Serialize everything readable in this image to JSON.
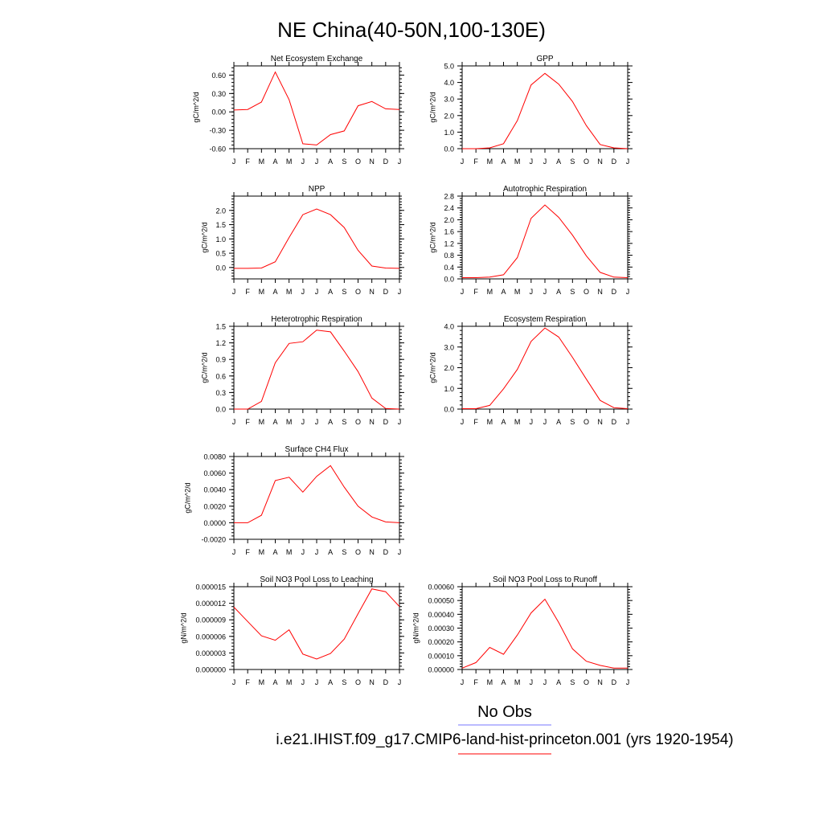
{
  "figure": {
    "title": "NE China(40-50N,100-130E)",
    "legend": {
      "obs_label": "No Obs",
      "obs_color": "#7777ff",
      "model_label": "i.e21.IHIST.f09_g17.CMIP6-land-hist-princeton.001 (yrs 1920-1954)",
      "model_color": "#ff0000"
    }
  },
  "chart_data": [
    {
      "type": "line",
      "title": "Net Ecosystem Exchange",
      "ylabel": "gC/m^2/d",
      "xlabel": "",
      "categories": [
        "J",
        "F",
        "M",
        "A",
        "M",
        "J",
        "J",
        "A",
        "S",
        "O",
        "N",
        "D",
        "J"
      ],
      "ylim": [
        -0.6,
        0.75
      ],
      "yticks": [
        -0.6,
        -0.3,
        0.0,
        0.3,
        0.6
      ],
      "yticklabels": [
        "-0.60",
        "-0.30",
        "0.00",
        "0.30",
        "0.60"
      ],
      "grid": false,
      "series": [
        {
          "color": "#ff0000",
          "values": [
            0.03,
            0.04,
            0.16,
            0.65,
            0.2,
            -0.52,
            -0.54,
            -0.37,
            -0.31,
            0.1,
            0.17,
            0.05,
            0.04
          ]
        }
      ]
    },
    {
      "type": "line",
      "title": "GPP",
      "ylabel": "gC/m^2/d",
      "xlabel": "",
      "categories": [
        "J",
        "F",
        "M",
        "A",
        "M",
        "J",
        "J",
        "A",
        "S",
        "O",
        "N",
        "D",
        "J"
      ],
      "ylim": [
        0,
        5
      ],
      "yticks": [
        0,
        1,
        2,
        3,
        4,
        5
      ],
      "yticklabels": [
        "0.0",
        "1.0",
        "2.0",
        "3.0",
        "4.0",
        "5.0"
      ],
      "grid": false,
      "series": [
        {
          "color": "#ff0000",
          "values": [
            0.0,
            0.0,
            0.05,
            0.3,
            1.7,
            3.85,
            4.55,
            3.9,
            2.85,
            1.4,
            0.25,
            0.05,
            0.0
          ]
        }
      ]
    },
    {
      "type": "line",
      "title": "NPP",
      "ylabel": "gC/m^2/d",
      "xlabel": "",
      "categories": [
        "J",
        "F",
        "M",
        "A",
        "M",
        "J",
        "J",
        "A",
        "S",
        "O",
        "N",
        "D",
        "J"
      ],
      "ylim": [
        -0.4,
        2.5
      ],
      "yticks": [
        0,
        0.5,
        1.0,
        1.5,
        2.0
      ],
      "yticklabels": [
        "0.0",
        "0.5",
        "1.0",
        "1.5",
        "2.0"
      ],
      "grid": false,
      "series": [
        {
          "color": "#ff0000",
          "values": [
            -0.03,
            -0.03,
            -0.02,
            0.2,
            1.05,
            1.85,
            2.05,
            1.85,
            1.4,
            0.6,
            0.05,
            -0.02,
            -0.03
          ]
        }
      ]
    },
    {
      "type": "line",
      "title": "Autotrophic Respiration",
      "ylabel": "gC/m^2/d",
      "xlabel": "",
      "categories": [
        "J",
        "F",
        "M",
        "A",
        "M",
        "J",
        "J",
        "A",
        "S",
        "O",
        "N",
        "D",
        "J"
      ],
      "ylim": [
        0,
        2.8
      ],
      "yticks": [
        0,
        0.4,
        0.8,
        1.2,
        1.6,
        2.0,
        2.4,
        2.8
      ],
      "yticklabels": [
        "0.0",
        "0.4",
        "0.8",
        "1.2",
        "1.6",
        "2.0",
        "2.4",
        "2.8"
      ],
      "grid": false,
      "series": [
        {
          "color": "#ff0000",
          "values": [
            0.04,
            0.04,
            0.06,
            0.14,
            0.72,
            2.05,
            2.5,
            2.08,
            1.48,
            0.78,
            0.22,
            0.06,
            0.04
          ]
        }
      ]
    },
    {
      "type": "line",
      "title": "Heterotrophic Respiration",
      "ylabel": "gC/m^2/d",
      "xlabel": "",
      "categories": [
        "J",
        "F",
        "M",
        "A",
        "M",
        "J",
        "J",
        "A",
        "S",
        "O",
        "N",
        "D",
        "J"
      ],
      "ylim": [
        0,
        1.5
      ],
      "yticks": [
        0,
        0.3,
        0.6,
        0.9,
        1.2,
        1.5
      ],
      "yticklabels": [
        "0.0",
        "0.3",
        "0.6",
        "0.9",
        "1.2",
        "1.5"
      ],
      "grid": false,
      "series": [
        {
          "color": "#ff0000",
          "values": [
            0.0,
            0.0,
            0.14,
            0.84,
            1.19,
            1.22,
            1.43,
            1.4,
            1.05,
            0.68,
            0.2,
            0.01,
            0.0
          ]
        }
      ]
    },
    {
      "type": "line",
      "title": "Ecosystem Respiration",
      "ylabel": "gC/m^2/d",
      "xlabel": "",
      "categories": [
        "J",
        "F",
        "M",
        "A",
        "M",
        "J",
        "J",
        "A",
        "S",
        "O",
        "N",
        "D",
        "J"
      ],
      "ylim": [
        0,
        4
      ],
      "yticks": [
        0,
        1,
        2,
        3,
        4
      ],
      "yticklabels": [
        "0.0",
        "1.0",
        "2.0",
        "3.0",
        "4.0"
      ],
      "grid": false,
      "series": [
        {
          "color": "#ff0000",
          "values": [
            0.02,
            0.02,
            0.18,
            0.98,
            1.92,
            3.27,
            3.92,
            3.48,
            2.5,
            1.45,
            0.42,
            0.07,
            0.02
          ]
        }
      ]
    },
    {
      "type": "line",
      "title": "Surface CH4 Flux",
      "ylabel": "gC/m^2/d",
      "xlabel": "",
      "categories": [
        "J",
        "F",
        "M",
        "A",
        "M",
        "J",
        "J",
        "A",
        "S",
        "O",
        "N",
        "D",
        "J"
      ],
      "ylim": [
        -0.002,
        0.008
      ],
      "yticks": [
        -0.002,
        0,
        0.002,
        0.004,
        0.006,
        0.008
      ],
      "yticklabels": [
        "-0.0020",
        "0.0000",
        "0.0020",
        "0.0040",
        "0.0060",
        "0.0080"
      ],
      "grid": false,
      "series": [
        {
          "color": "#ff0000",
          "values": [
            0.0,
            0.0,
            0.0009,
            0.0051,
            0.0055,
            0.0037,
            0.0056,
            0.0069,
            0.0043,
            0.002,
            0.0007,
            0.0001,
            0.0
          ]
        }
      ]
    },
    {
      "type": "line",
      "title": "Soil NO3 Pool Loss to Leaching",
      "ylabel": "gN/m^2/d",
      "xlabel": "",
      "categories": [
        "J",
        "F",
        "M",
        "A",
        "M",
        "J",
        "J",
        "A",
        "S",
        "O",
        "N",
        "D",
        "J"
      ],
      "ylim": [
        0,
        1.5e-05
      ],
      "yticks": [
        0,
        3e-06,
        6e-06,
        9e-06,
        1.2e-05,
        1.5e-05
      ],
      "yticklabels": [
        "0.000000",
        "0.000003",
        "0.000006",
        "0.000009",
        "0.000012",
        "0.000015"
      ],
      "grid": false,
      "series": [
        {
          "color": "#ff0000",
          "values": [
            1.13e-05,
            8.7e-06,
            6.1e-06,
            5.3e-06,
            7.2e-06,
            2.8e-06,
            1.9e-06,
            2.9e-06,
            5.5e-06,
            1.01e-05,
            1.46e-05,
            1.41e-05,
            1.14e-05
          ]
        }
      ]
    },
    {
      "type": "line",
      "title": "Soil NO3 Pool Loss to Runoff",
      "ylabel": "gN/m^2/d",
      "xlabel": "",
      "categories": [
        "J",
        "F",
        "M",
        "A",
        "M",
        "J",
        "J",
        "A",
        "S",
        "O",
        "N",
        "D",
        "J"
      ],
      "ylim": [
        0,
        0.0006
      ],
      "yticks": [
        0,
        0.0001,
        0.0002,
        0.0003,
        0.0004,
        0.0005,
        0.0006
      ],
      "yticklabels": [
        "0.00000",
        "0.00010",
        "0.00020",
        "0.00030",
        "0.00040",
        "0.00050",
        "0.00060"
      ],
      "grid": false,
      "series": [
        {
          "color": "#ff0000",
          "values": [
            1e-05,
            5e-05,
            0.00016,
            0.00011,
            0.00025,
            0.00041,
            0.00051,
            0.00034,
            0.00015,
            6e-05,
            3e-05,
            1e-05,
            1e-05
          ]
        }
      ]
    }
  ]
}
